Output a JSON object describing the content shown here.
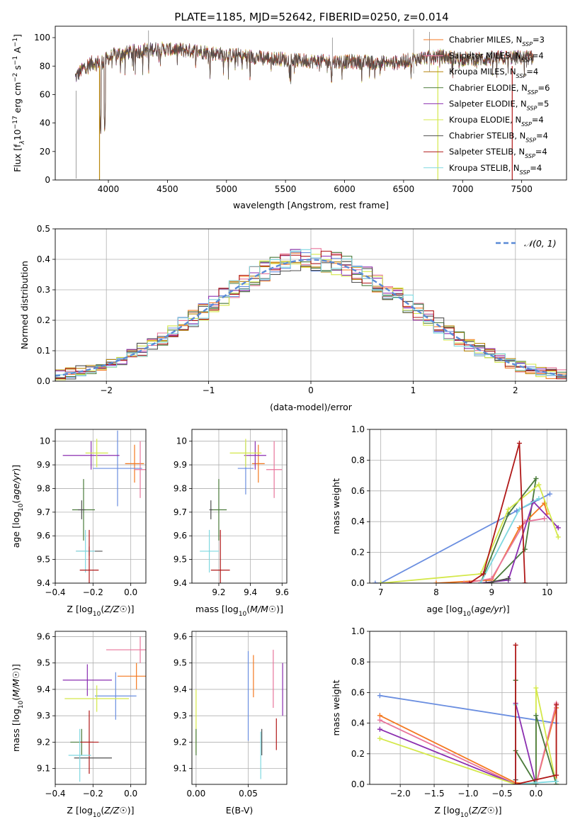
{
  "title": "PLATE=1185, MJD=52642, FIBERID=0250, z=0.014",
  "colors": {
    "chabrier_miles": "#f47920",
    "salpeter_miles": "#e8759b",
    "kroupa_miles": "#b8860b",
    "chabrier_elodie": "#4a7a3a",
    "salpeter_elodie": "#8b2fb0",
    "kroupa_elodie": "#d4e84a",
    "chabrier_stelib": "#505050",
    "salpeter_stelib": "#b01818",
    "kroupa_stelib": "#7fd8e0",
    "extra_blue": "#6a8ee0",
    "gaussian": "#5a8ad6",
    "grid": "#b0b0b0"
  },
  "chart_data": [
    {
      "id": "spectrum",
      "type": "line",
      "xlabel": "wavelength [Angstrom, rest frame]",
      "ylabel_parts": [
        "Flux [f",
        "λ",
        "10",
        "−17",
        " erg cm",
        "−2",
        " s",
        "−1",
        " A",
        "−1",
        "]"
      ],
      "xlim": [
        3550,
        7880
      ],
      "ylim": [
        0,
        108
      ],
      "xticks": [
        4000,
        4500,
        5000,
        5500,
        6000,
        6500,
        7000,
        7500
      ],
      "yticks": [
        0,
        20,
        40,
        60,
        80,
        100
      ],
      "legend": {
        "position": "right",
        "entries": [
          {
            "label": "Chabrier MILES, N",
            "sub": "SSP",
            "suffix": "=3",
            "color": "#f47920"
          },
          {
            "label": "Salpeter MILES, N",
            "sub": "SSP",
            "suffix": "=4",
            "color": "#e8759b"
          },
          {
            "label": "Kroupa MILES, N",
            "sub": "SSP",
            "suffix": "=4",
            "color": "#b8860b"
          },
          {
            "label": "Chabrier ELODIE, N",
            "sub": "SSP",
            "suffix": "=6",
            "color": "#4a7a3a"
          },
          {
            "label": "Salpeter ELODIE, N",
            "sub": "SSP",
            "suffix": "=5",
            "color": "#8b2fb0"
          },
          {
            "label": "Kroupa ELODIE, N",
            "sub": "SSP",
            "suffix": "=4",
            "color": "#d4e84a"
          },
          {
            "label": "Chabrier STELIB, N",
            "sub": "SSP",
            "suffix": "=4",
            "color": "#505050"
          },
          {
            "label": "Salpeter STELIB, N",
            "sub": "SSP",
            "suffix": "=4",
            "color": "#b01818"
          },
          {
            "label": "Kroupa STELIB, N",
            "sub": "SSP",
            "suffix": "=4",
            "color": "#7fd8e0"
          }
        ]
      },
      "continuum": [
        [
          3720,
          72
        ],
        [
          3780,
          78
        ],
        [
          3850,
          82
        ],
        [
          3950,
          83
        ],
        [
          4050,
          88
        ],
        [
          4200,
          90
        ],
        [
          4400,
          92
        ],
        [
          4700,
          91
        ],
        [
          5000,
          88
        ],
        [
          5300,
          86
        ],
        [
          5600,
          84
        ],
        [
          5900,
          83
        ],
        [
          6100,
          83
        ],
        [
          6400,
          82
        ],
        [
          6600,
          85
        ],
        [
          6800,
          87
        ],
        [
          7000,
          85
        ],
        [
          7200,
          85
        ],
        [
          7400,
          86
        ],
        [
          7600,
          86
        ]
      ],
      "drops": [
        [
          3934,
          30
        ],
        [
          3969,
          32
        ],
        [
          4102,
          75
        ],
        [
          4341,
          75
        ],
        [
          4861,
          72
        ],
        [
          5175,
          78
        ],
        [
          5890,
          65
        ],
        [
          6563,
          70
        ]
      ],
      "spikes": [
        [
          3727,
          1
        ],
        [
          4340,
          105
        ],
        [
          5897,
          100
        ],
        [
          6585,
          106
        ],
        [
          6720,
          104
        ]
      ],
      "vertical_lines": [
        {
          "x": 3925,
          "color": "#b8860b"
        },
        {
          "x": 6790,
          "color": "#d4e84a"
        },
        {
          "x": 7420,
          "color": "#b01818"
        }
      ]
    },
    {
      "id": "residuals",
      "type": "histogram",
      "xlabel": "(data-model)/error",
      "ylabel": "Normed distribution",
      "xlim": [
        -2.5,
        2.5
      ],
      "ylim": [
        0,
        0.5
      ],
      "xticks": [
        -2,
        -1,
        0,
        1,
        2
      ],
      "xticklabels": [
        "−2",
        "−1",
        "0",
        "1",
        "2"
      ],
      "yticks": [
        0,
        0.1,
        0.2,
        0.3,
        0.4,
        0.5
      ],
      "yticklabels": [
        "0.0",
        "0.1",
        "0.2",
        "0.3",
        "0.4",
        "0.5"
      ],
      "bin_edges_start": -2.5,
      "bin_width": 0.1,
      "nbins": 50,
      "gaussian_label": "𝒩(0, 1)",
      "legend_position": "top-right"
    },
    {
      "id": "age_vs_Z",
      "type": "errorbar",
      "xlabel": "Z [log10(Z/Z☉)]",
      "ylabel": "age  [log10(age/yr)]",
      "xlim": [
        -0.4,
        0.08
      ],
      "ylim": [
        9.4,
        10.05
      ],
      "xticks": [
        -0.4,
        -0.2,
        0.0
      ],
      "xticklabels": [
        "−0.4",
        "−0.2",
        "0.0"
      ],
      "yticks": [
        9.4,
        9.5,
        9.6,
        9.7,
        9.8,
        9.9,
        10.0
      ],
      "points": [
        {
          "x": 0.02,
          "y": 9.905,
          "xerr": 0.05,
          "yerr": 0.08,
          "color": "#f47920"
        },
        {
          "x": 0.05,
          "y": 9.88,
          "xerr": 0.03,
          "yerr": 0.12,
          "color": "#e8759b"
        },
        {
          "x": -0.07,
          "y": 9.885,
          "xerr": 0.13,
          "yerr": 0.16,
          "color": "#6a8ee0"
        },
        {
          "x": -0.21,
          "y": 9.94,
          "xerr": 0.15,
          "yerr": 0.06,
          "color": "#8b2fb0"
        },
        {
          "x": -0.18,
          "y": 9.95,
          "xerr": 0.06,
          "yerr": 0.06,
          "color": "#d4e84a"
        },
        {
          "x": -0.25,
          "y": 9.71,
          "xerr": 0.06,
          "yerr": 0.13,
          "color": "#4a7a3a"
        },
        {
          "x": -0.26,
          "y": 9.71,
          "xerr": 0.02,
          "yerr": 0.04,
          "color": "#505050"
        },
        {
          "x": -0.22,
          "y": 9.535,
          "xerr": 0.07,
          "yerr": 0.02,
          "color": "#505050"
        },
        {
          "x": -0.24,
          "y": 9.535,
          "xerr": 0.05,
          "yerr": 0.09,
          "color": "#7fd8e0"
        },
        {
          "x": -0.22,
          "y": 9.455,
          "xerr": 0.05,
          "yerr": 0.17,
          "color": "#b01818"
        }
      ]
    },
    {
      "id": "age_vs_mass",
      "type": "errorbar",
      "xlabel": "mass [log10(M/M☉)]",
      "xlim": [
        9.03,
        9.63
      ],
      "ylim": [
        9.4,
        10.05
      ],
      "xticks": [
        9.2,
        9.4,
        9.6
      ],
      "xticklabels": [
        "9.2",
        "9.4",
        "9.6"
      ],
      "yticks": [
        9.4,
        9.5,
        9.6,
        9.7,
        9.8,
        9.9,
        10.0
      ],
      "points": [
        {
          "x": 9.45,
          "y": 9.905,
          "xerr": 0.04,
          "yerr": 0.08,
          "color": "#f47920"
        },
        {
          "x": 9.55,
          "y": 9.88,
          "xerr": 0.05,
          "yerr": 0.12,
          "color": "#e8759b"
        },
        {
          "x": 9.37,
          "y": 9.885,
          "xerr": 0.05,
          "yerr": 0.11,
          "color": "#6a8ee0"
        },
        {
          "x": 9.43,
          "y": 9.94,
          "xerr": 0.07,
          "yerr": 0.06,
          "color": "#8b2fb0"
        },
        {
          "x": 9.37,
          "y": 9.95,
          "xerr": 0.1,
          "yerr": 0.06,
          "color": "#d4e84a"
        },
        {
          "x": 9.2,
          "y": 9.71,
          "xerr": 0.05,
          "yerr": 0.13,
          "color": "#4a7a3a"
        },
        {
          "x": 9.15,
          "y": 9.71,
          "xerr": 0.01,
          "yerr": 0.04,
          "color": "#505050"
        },
        {
          "x": 9.14,
          "y": 9.535,
          "xerr": 0.06,
          "yerr": 0.09,
          "color": "#7fd8e0"
        },
        {
          "x": 9.21,
          "y": 9.455,
          "xerr": 0.06,
          "yerr": 0.17,
          "color": "#b01818"
        }
      ]
    },
    {
      "id": "mass_weight_vs_age",
      "type": "line",
      "xlabel": "age  [log10(age/yr)]",
      "ylabel": "mass weight",
      "xlim": [
        6.8,
        10.35
      ],
      "ylim": [
        0,
        1.0
      ],
      "xticks": [
        7,
        8,
        9,
        10
      ],
      "yticks": [
        0,
        0.2,
        0.4,
        0.6,
        0.8,
        1.0
      ],
      "yticklabels": [
        "0.0",
        "0.2",
        "0.4",
        "0.6",
        "0.8",
        "1.0"
      ],
      "series": [
        {
          "color": "#6a8ee0",
          "x": [
            6.9,
            7.0,
            9.45,
            10.05
          ],
          "y": [
            0,
            0,
            0.47,
            0.58
          ]
        },
        {
          "color": "#4a7a3a",
          "x": [
            9.0,
            9.6,
            9.8,
            9.3,
            8.8
          ],
          "y": [
            0,
            0.22,
            0.68,
            0.45,
            0
          ]
        },
        {
          "color": "#f47920",
          "x": [
            8.0,
            9.0,
            9.5,
            9.95,
            10.0
          ],
          "y": [
            0,
            0.02,
            0.36,
            0.52,
            0.45
          ]
        },
        {
          "color": "#e8759b",
          "x": [
            8.5,
            9.0,
            9.6,
            9.95
          ],
          "y": [
            0,
            0.03,
            0.4,
            0.42
          ]
        },
        {
          "color": "#8b2fb0",
          "x": [
            8.8,
            9.3,
            9.75,
            10.2
          ],
          "y": [
            0,
            0.02,
            0.53,
            0.36
          ]
        },
        {
          "color": "#d4e84a",
          "x": [
            7.0,
            8.8,
            9.3,
            9.85,
            10.2
          ],
          "y": [
            0,
            0.06,
            0.48,
            0.64,
            0.3
          ]
        },
        {
          "color": "#7fd8e0",
          "x": [
            8.8,
            9.5,
            9.85
          ],
          "y": [
            0,
            0.48,
            0.55
          ]
        },
        {
          "color": "#505050",
          "x": [
            8.9,
            9.3
          ],
          "y": [
            0,
            0.03
          ]
        },
        {
          "color": "#b01818",
          "x": [
            8.6,
            8.85,
            9.5,
            9.6
          ],
          "y": [
            0,
            0.06,
            0.91,
            0.0
          ]
        }
      ]
    },
    {
      "id": "mass_vs_Z",
      "type": "errorbar",
      "xlabel": "Z [log10(Z/Z☉)]",
      "ylabel": "mass [log10(M/M☉)]",
      "xlim": [
        -0.4,
        0.08
      ],
      "ylim": [
        9.04,
        9.62
      ],
      "xticks": [
        -0.4,
        -0.2,
        0.0
      ],
      "xticklabels": [
        "−0.4",
        "−0.2",
        "0.0"
      ],
      "yticks": [
        9.1,
        9.2,
        9.3,
        9.4,
        9.5,
        9.6
      ],
      "points": [
        {
          "x": 0.05,
          "y": 9.55,
          "xerr": 0.18,
          "yerr": 0.05,
          "color": "#e8759b"
        },
        {
          "x": 0.03,
          "y": 9.45,
          "xerr": 0.1,
          "yerr": 0.05,
          "color": "#f47920"
        },
        {
          "x": -0.08,
          "y": 9.375,
          "xerr": 0.11,
          "yerr": 0.09,
          "color": "#6a8ee0"
        },
        {
          "x": -0.23,
          "y": 9.435,
          "xerr": 0.13,
          "yerr": 0.06,
          "color": "#8b2fb0"
        },
        {
          "x": -0.18,
          "y": 9.365,
          "xerr": 0.17,
          "yerr": 0.05,
          "color": "#d4e84a"
        },
        {
          "x": -0.26,
          "y": 9.2,
          "xerr": 0.06,
          "yerr": 0.05,
          "color": "#4a7a3a"
        },
        {
          "x": -0.2,
          "y": 9.14,
          "xerr": 0.1,
          "yerr": 0.0,
          "color": "#505050"
        },
        {
          "x": -0.22,
          "y": 9.2,
          "xerr": 0.05,
          "yerr": 0.12,
          "color": "#b01818"
        },
        {
          "x": -0.27,
          "y": 9.15,
          "xerr": 0.06,
          "yerr": 0.1,
          "color": "#7fd8e0"
        }
      ]
    },
    {
      "id": "mass_vs_EBV",
      "type": "errorbar",
      "xlabel": "E(B-V)",
      "xlim": [
        -0.004,
        0.087
      ],
      "ylim": [
        9.04,
        9.62
      ],
      "xticks": [
        0.0,
        0.05
      ],
      "xticklabels": [
        "0.00",
        "0.05"
      ],
      "yticks": [
        9.1,
        9.2,
        9.3,
        9.4,
        9.5,
        9.6
      ],
      "points": [
        {
          "x": 0.0,
          "y": 9.28,
          "yerr": 0.12,
          "color": "#d4e84a"
        },
        {
          "x": 0.0,
          "y": 9.2,
          "yerr": 0.05,
          "color": "#4a7a3a"
        },
        {
          "x": 0.05,
          "y": 9.375,
          "yerr": 0.17,
          "color": "#6a8ee0"
        },
        {
          "x": 0.055,
          "y": 9.45,
          "yerr": 0.08,
          "color": "#f47920"
        },
        {
          "x": 0.062,
          "y": 9.15,
          "yerr": 0.09,
          "color": "#7fd8e0"
        },
        {
          "x": 0.063,
          "y": 9.2,
          "yerr": 0.05,
          "color": "#505050"
        },
        {
          "x": 0.074,
          "y": 9.44,
          "yerr": 0.11,
          "color": "#e8759b"
        },
        {
          "x": 0.077,
          "y": 9.23,
          "yerr": 0.06,
          "color": "#b01818"
        },
        {
          "x": 0.083,
          "y": 9.4,
          "yerr": 0.1,
          "color": "#8b2fb0"
        }
      ]
    },
    {
      "id": "mass_weight_vs_Z",
      "type": "line",
      "xlabel": "Z [log10(Z/Z☉)]",
      "ylabel": "mass weight",
      "xlim": [
        -2.45,
        0.45
      ],
      "ylim": [
        0,
        1.0
      ],
      "xticks": [
        -2.0,
        -1.5,
        -1.0,
        -0.5,
        0.0
      ],
      "xticklabels": [
        "−2.0",
        "−1.5",
        "−1.0",
        "−0.5",
        "0.0"
      ],
      "yticks": [
        0,
        0.2,
        0.4,
        0.6,
        0.8,
        1.0
      ],
      "yticklabels": [
        "0.0",
        "0.2",
        "0.4",
        "0.6",
        "0.8",
        "1.0"
      ],
      "series": [
        {
          "color": "#6a8ee0",
          "x": [
            -2.3,
            0.3
          ],
          "y": [
            0.58,
            0.4
          ]
        },
        {
          "color": "#f47920",
          "x": [
            -2.3,
            -0.3,
            0.0,
            0.3,
            0.3
          ],
          "y": [
            0.45,
            0.01,
            0.0,
            0.5,
            0.02
          ]
        },
        {
          "color": "#e8759b",
          "x": [
            -2.3,
            -0.3,
            0.0,
            0.3
          ],
          "y": [
            0.42,
            0.0,
            0.0,
            0.53
          ]
        },
        {
          "color": "#8b2fb0",
          "x": [
            -2.3,
            -0.3,
            -0.3,
            0.0
          ],
          "y": [
            0.36,
            0.0,
            0.53,
            0.0
          ]
        },
        {
          "color": "#d4e84a",
          "x": [
            -2.3,
            -0.3,
            0.0,
            0.0,
            0.3
          ],
          "y": [
            0.3,
            0.0,
            0.0,
            0.63,
            0.0
          ]
        },
        {
          "color": "#4a7a3a",
          "x": [
            -0.3,
            -0.3,
            0.0,
            0.0,
            0.3
          ],
          "y": [
            0.68,
            0.22,
            0.0,
            0.45,
            0.0
          ]
        },
        {
          "color": "#7fd8e0",
          "x": [
            -0.3,
            -0.3,
            0.0,
            0.3
          ],
          "y": [
            0.52,
            0.0,
            0.01,
            0.02
          ]
        },
        {
          "color": "#505050",
          "x": [
            -0.3,
            -0.3
          ],
          "y": [
            0.0,
            0.03
          ]
        },
        {
          "color": "#b01818",
          "x": [
            -0.3,
            -0.3,
            0.3,
            0.3
          ],
          "y": [
            0.91,
            0.0,
            0.06,
            0.52
          ]
        }
      ]
    }
  ]
}
